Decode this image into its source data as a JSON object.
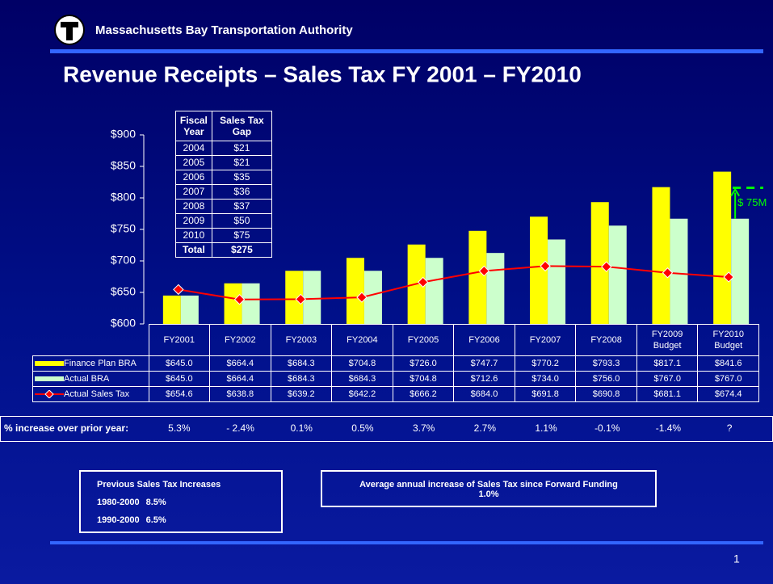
{
  "header": "Massachusetts Bay Transportation Authority",
  "title": "Revenue Receipts – Sales Tax FY 2001 – FY2010",
  "gap_table": {
    "header": [
      "Fiscal Year",
      "Sales Tax Gap"
    ],
    "rows": [
      [
        "2004",
        "$21"
      ],
      [
        "2005",
        "$21"
      ],
      [
        "2006",
        "$35"
      ],
      [
        "2007",
        "$36"
      ],
      [
        "2008",
        "$37"
      ],
      [
        "2009",
        "$50"
      ],
      [
        "2010",
        "$75"
      ]
    ],
    "total": [
      "Total",
      "$275"
    ]
  },
  "chart_data": {
    "type": "bar",
    "categories": [
      "FY2001",
      "FY2002",
      "FY2003",
      "FY2004",
      "FY2005",
      "FY2006",
      "FY2007",
      "FY2008",
      "FY2009 Budget",
      "FY2010 Budget"
    ],
    "series": [
      {
        "name": "Finance Plan BRA",
        "color": "#ffff00",
        "values": [
          645.0,
          664.4,
          684.3,
          704.8,
          726.0,
          747.7,
          770.2,
          793.3,
          817.1,
          841.6
        ],
        "value_labels": [
          "$645.0",
          "$664.4",
          "$684.3",
          "$704.8",
          "$726.0",
          "$747.7",
          "$770.2",
          "$793.3",
          "$817.1",
          "$841.6"
        ]
      },
      {
        "name": "Actual BRA",
        "color": "#ccffcc",
        "values": [
          645.0,
          664.4,
          684.3,
          684.3,
          704.8,
          712.6,
          734.0,
          756.0,
          767.0,
          767.0
        ],
        "value_labels": [
          "$645.0",
          "$664.4",
          "$684.3",
          "$684.3",
          "$704.8",
          "$712.6",
          "$734.0",
          "$756.0",
          "$767.0",
          "$767.0"
        ]
      },
      {
        "name": "Actual Sales Tax",
        "color": "#ff0000",
        "kind": "line",
        "values": [
          654.6,
          638.8,
          639.2,
          642.2,
          666.2,
          684.0,
          691.8,
          690.8,
          681.1,
          674.4
        ],
        "value_labels": [
          "$654.6",
          "$638.8",
          "$639.2",
          "$642.2",
          "$666.2",
          "$684.0",
          "$691.8",
          "$690.8",
          "$681.1",
          "$674.4"
        ]
      }
    ],
    "ylim": [
      600,
      900
    ],
    "yticks": [
      {
        "value": 600,
        "label": "$600"
      },
      {
        "value": 650,
        "label": "$650"
      },
      {
        "value": 700,
        "label": "$700"
      },
      {
        "value": 750,
        "label": "$750"
      },
      {
        "value": 800,
        "label": "$800"
      },
      {
        "value": 850,
        "label": "$850"
      },
      {
        "value": 900,
        "label": "$900"
      }
    ],
    "grid": false,
    "annotation": "$ 75M"
  },
  "increase": {
    "label": "% increase over prior year:",
    "values": [
      "5.3%",
      "- 2.4%",
      "0.1%",
      "0.5%",
      "3.7%",
      "2.7%",
      "1.1%",
      "-0.1%",
      "-1.4%",
      "?"
    ]
  },
  "previous_box": {
    "title": "Previous Sales Tax Increases",
    "rows": [
      [
        "1980-2000",
        "8.5%"
      ],
      [
        "1990-2000",
        "6.5%"
      ]
    ]
  },
  "average_box": {
    "title": "Average annual increase of Sales Tax since Forward Funding",
    "value": "1.0%"
  },
  "page_number": "1"
}
